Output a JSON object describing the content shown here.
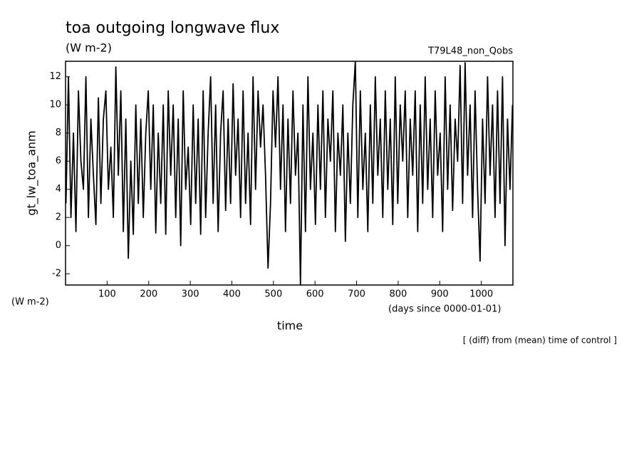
{
  "chart_data": {
    "type": "line",
    "title": "toa outgoing longwave flux",
    "subtitle": "(W m-2)",
    "run_label": "T79L48_non_Qobs",
    "ylabel": "gt_lw_toa_anm",
    "yunits": "(W m-2)",
    "xlabel": "time",
    "xunits": "(days since 0000-01-01)",
    "annotation": "[ (diff) from (mean) time of control ]",
    "xlim": [
      0,
      1076
    ],
    "ylim": [
      -2.8,
      13.1
    ],
    "xticks": [
      100,
      200,
      300,
      400,
      500,
      600,
      700,
      800,
      900,
      1000
    ],
    "yticks": [
      -2,
      0,
      2,
      4,
      6,
      8,
      10,
      12
    ],
    "grid": false,
    "x": [
      1,
      7,
      13,
      19,
      25,
      31,
      37,
      43,
      49,
      55,
      61,
      67,
      73,
      79,
      85,
      91,
      97,
      103,
      109,
      115,
      121,
      127,
      133,
      139,
      145,
      151,
      157,
      163,
      169,
      175,
      181,
      187,
      193,
      199,
      205,
      211,
      217,
      223,
      229,
      235,
      241,
      247,
      253,
      259,
      265,
      271,
      277,
      283,
      289,
      295,
      301,
      307,
      313,
      319,
      325,
      331,
      337,
      343,
      349,
      355,
      361,
      367,
      373,
      379,
      385,
      391,
      397,
      403,
      409,
      415,
      421,
      427,
      433,
      439,
      445,
      451,
      457,
      463,
      469,
      475,
      481,
      487,
      493,
      499,
      505,
      511,
      517,
      523,
      529,
      535,
      541,
      547,
      553,
      559,
      565,
      571,
      577,
      583,
      589,
      595,
      601,
      607,
      613,
      619,
      625,
      631,
      637,
      643,
      649,
      655,
      661,
      667,
      673,
      679,
      685,
      691,
      697,
      703,
      709,
      715,
      721,
      727,
      733,
      739,
      745,
      751,
      757,
      763,
      769,
      775,
      781,
      787,
      793,
      799,
      805,
      811,
      817,
      823,
      829,
      835,
      841,
      847,
      853,
      859,
      865,
      871,
      877,
      883,
      889,
      895,
      901,
      907,
      913,
      919,
      925,
      931,
      937,
      943,
      949,
      955,
      961,
      967,
      973,
      979,
      985,
      991,
      997,
      1003,
      1009,
      1015,
      1021,
      1027,
      1033,
      1039,
      1045,
      1051,
      1057,
      1063,
      1069,
      1075
    ],
    "series": [
      {
        "name": "gt_lw_toa_anm",
        "color": "#000000",
        "values": [
          3,
          12,
          2,
          8,
          1,
          11,
          6,
          4,
          12,
          2,
          9,
          5,
          1.5,
          10.5,
          3,
          9,
          11,
          4,
          7,
          2,
          12.7,
          5,
          11,
          1,
          9,
          -0.9,
          6,
          0.8,
          10,
          3,
          9,
          2,
          8,
          11,
          4,
          10,
          0.9,
          8,
          3,
          10,
          0.8,
          11,
          5,
          10,
          2,
          9,
          0,
          11,
          4,
          7,
          1.5,
          10,
          3,
          9,
          0.8,
          11,
          2,
          8,
          12,
          3,
          10,
          1,
          8,
          11,
          2.5,
          9,
          3,
          11.5,
          5,
          9,
          2,
          11,
          3,
          8,
          1.5,
          12,
          4,
          11,
          7,
          10,
          5,
          -1.6,
          3,
          11,
          7,
          12,
          4,
          10,
          1,
          9,
          3,
          11,
          5,
          8,
          -2.8,
          10,
          1,
          12,
          4,
          8,
          1.5,
          10,
          4,
          11,
          2,
          9,
          6,
          11,
          1,
          8,
          5,
          10,
          0.3,
          8,
          3,
          10,
          13.1,
          2,
          11,
          4,
          8,
          1,
          10,
          3,
          12,
          5,
          9,
          2,
          11,
          4,
          9,
          1.5,
          12,
          3,
          10,
          6,
          11,
          2,
          9,
          5,
          11,
          1,
          10,
          3,
          12,
          4,
          9,
          2,
          11,
          5,
          8,
          1,
          12,
          4,
          10,
          2.5,
          9,
          6,
          12.8,
          3,
          13,
          5,
          10,
          2,
          11,
          4,
          -1.1,
          9,
          3,
          12,
          5,
          10,
          2,
          11,
          3,
          12,
          0,
          9,
          4,
          10
        ]
      }
    ]
  }
}
